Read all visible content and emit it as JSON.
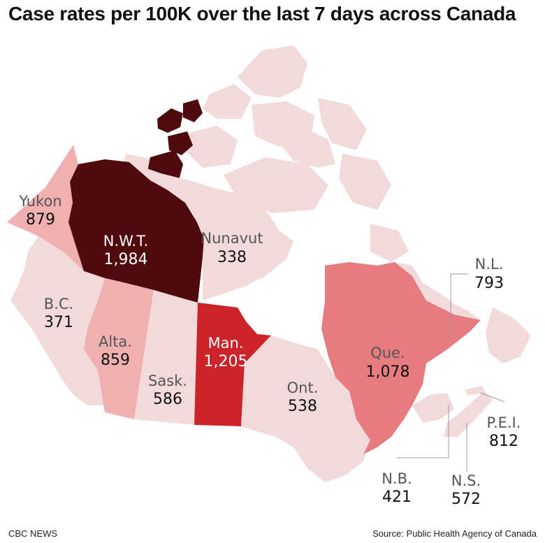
{
  "title": "Case rates per 100K over the last 7 days across Canada",
  "footer": {
    "credit": "CBC NEWS",
    "source": "Source: Public Health Agency of Canada"
  },
  "colors": {
    "scale_lowest": "#f2dada",
    "scale_low": "#f0b0b0",
    "scale_mid": "#e77c80",
    "scale_high": "#cc2229",
    "scale_highest": "#4e0a0d"
  },
  "regions": {
    "yukon": {
      "name": "Yukon",
      "value": "879"
    },
    "nwt": {
      "name": "N.W.T.",
      "value": "1,984"
    },
    "nunavut": {
      "name": "Nunavut",
      "value": "338"
    },
    "bc": {
      "name": "B.C.",
      "value": "371"
    },
    "alta": {
      "name": "Alta.",
      "value": "859"
    },
    "sask": {
      "name": "Sask.",
      "value": "586"
    },
    "man": {
      "name": "Man.",
      "value": "1,205"
    },
    "ont": {
      "name": "Ont.",
      "value": "538"
    },
    "que": {
      "name": "Que.",
      "value": "1,078"
    },
    "nl": {
      "name": "N.L.",
      "value": "793"
    },
    "pei": {
      "name": "P.E.I.",
      "value": "812"
    },
    "nb": {
      "name": "N.B.",
      "value": "421"
    },
    "ns": {
      "name": "N.S.",
      "value": "572"
    }
  }
}
